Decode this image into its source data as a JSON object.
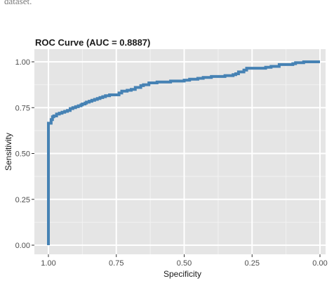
{
  "page": {
    "top_fragment": "dataset."
  },
  "chart_data": {
    "type": "line",
    "title": "ROC Curve (AUC = 0.8887)",
    "xlabel": "Specificity",
    "ylabel": "Sensitivity",
    "x_reversed": true,
    "xlim": [
      1.0,
      0.0
    ],
    "ylim": [
      0.0,
      1.0
    ],
    "x_ticks": [
      1.0,
      0.75,
      0.5,
      0.25,
      0.0
    ],
    "x_tick_labels": [
      "1.00",
      "0.75",
      "0.50",
      "0.25",
      "0.00"
    ],
    "y_ticks": [
      0.0,
      0.25,
      0.5,
      0.75,
      1.0
    ],
    "y_tick_labels": [
      "0.00",
      "0.25",
      "0.50",
      "0.75",
      "1.00"
    ],
    "grid": true,
    "colors": {
      "panel_bg": "#e5e5e5",
      "grid_major": "#ffffff",
      "grid_minor": "#f2f2f2",
      "line": "#4682b4"
    },
    "series": [
      {
        "x": [
          1.0,
          1.0,
          0.995,
          0.99,
          0.985,
          0.98,
          0.97,
          0.96,
          0.95,
          0.94,
          0.93,
          0.92,
          0.91,
          0.9,
          0.89,
          0.88,
          0.875,
          0.865,
          0.86,
          0.85,
          0.84,
          0.83,
          0.82,
          0.81,
          0.8,
          0.79,
          0.775,
          0.76,
          0.74,
          0.73,
          0.71,
          0.695,
          0.68,
          0.66,
          0.65,
          0.63,
          0.6,
          0.55,
          0.5,
          0.48,
          0.45,
          0.43,
          0.4,
          0.35,
          0.32,
          0.31,
          0.3,
          0.28,
          0.27,
          0.2,
          0.18,
          0.15,
          0.1,
          0.09,
          0.06,
          0.0
        ],
        "y": [
          0.0,
          0.665,
          0.665,
          0.685,
          0.7,
          0.705,
          0.715,
          0.72,
          0.725,
          0.73,
          0.735,
          0.745,
          0.75,
          0.755,
          0.76,
          0.765,
          0.77,
          0.775,
          0.78,
          0.785,
          0.79,
          0.795,
          0.8,
          0.805,
          0.81,
          0.815,
          0.82,
          0.82,
          0.83,
          0.84,
          0.845,
          0.85,
          0.86,
          0.87,
          0.875,
          0.885,
          0.89,
          0.895,
          0.9,
          0.905,
          0.91,
          0.915,
          0.92,
          0.925,
          0.93,
          0.935,
          0.945,
          0.955,
          0.965,
          0.97,
          0.975,
          0.985,
          0.99,
          0.995,
          1.0,
          1.0
        ]
      }
    ]
  }
}
